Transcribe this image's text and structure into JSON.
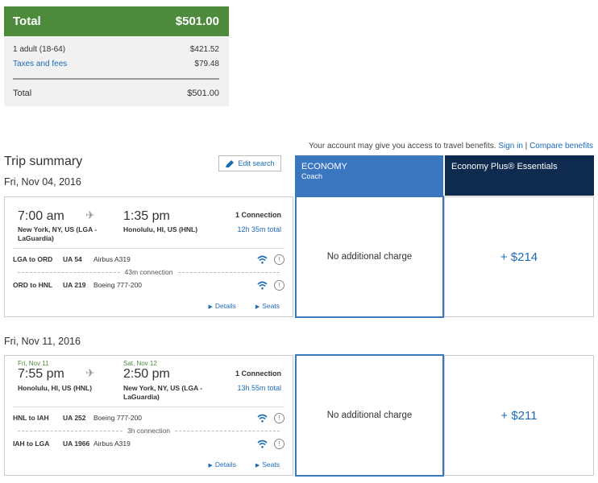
{
  "price_summary": {
    "header_label": "Total",
    "header_amount": "$501.00",
    "rows": [
      {
        "label": "1 adult (18-64)",
        "amount": "$421.52"
      },
      {
        "label": "Taxes and fees",
        "amount": "$79.48"
      }
    ],
    "total_label": "Total",
    "total_amount": "$501.00"
  },
  "benefits": {
    "text": "Your account may give you access to travel benefits.",
    "sign_in": "Sign in",
    "separator": "|",
    "compare": "Compare benefits"
  },
  "trip": {
    "title": "Trip summary",
    "edit_label": "Edit search"
  },
  "fare_headers": {
    "economy_title": "ECONOMY",
    "economy_subtitle": "Coach",
    "plus_title": "Economy Plus® Essentials"
  },
  "flights": [
    {
      "date": "Fri, Nov 04, 2016",
      "dep_date": "",
      "arr_date": "",
      "dep_time": "7:00 am",
      "arr_time": "1:35 pm",
      "dep_city": "New York, NY, US (LGA - LaGuardia)",
      "arr_city": "Honolulu, HI, US (HNL)",
      "connections": "1 Connection",
      "duration": "12h 35m total",
      "legs": [
        {
          "route": "LGA to ORD",
          "flight": "UA 54",
          "aircraft": "Airbus A319"
        },
        {
          "route": "ORD to HNL",
          "flight": "UA 219",
          "aircraft": "Boeing 777-200"
        }
      ],
      "connection_text": "43m connection",
      "details_label": "Details",
      "seats_label": "Seats",
      "economy_fare": "No additional charge",
      "plus_fare": "+ $214"
    },
    {
      "date": "Fri, Nov 11, 2016",
      "dep_date": "Fri, Nov 11",
      "arr_date": "Sat, Nov 12",
      "dep_time": "7:55 pm",
      "arr_time": "2:50 pm",
      "dep_city": "Honolulu, HI, US (HNL)",
      "arr_city": "New York, NY, US (LGA - LaGuardia)",
      "connections": "1 Connection",
      "duration": "13h 55m total",
      "legs": [
        {
          "route": "HNL to IAH",
          "flight": "UA 252",
          "aircraft": "Boeing 777-200"
        },
        {
          "route": "IAH to LGA",
          "flight": "UA 1966",
          "aircraft": "Airbus A319"
        }
      ],
      "connection_text": "3h connection",
      "details_label": "Details",
      "seats_label": "Seats",
      "economy_fare": "No additional charge",
      "plus_fare": "+ $211"
    }
  ],
  "icons": {
    "plane": "plane-icon",
    "wifi": "wifi-icon",
    "info": "info-icon",
    "edit": "pencil-icon"
  },
  "colors": {
    "total_header": "#4d8a3c",
    "economy_header": "#3a77c0",
    "plus_header": "#0e2a4f",
    "link": "#1d6bb5"
  }
}
